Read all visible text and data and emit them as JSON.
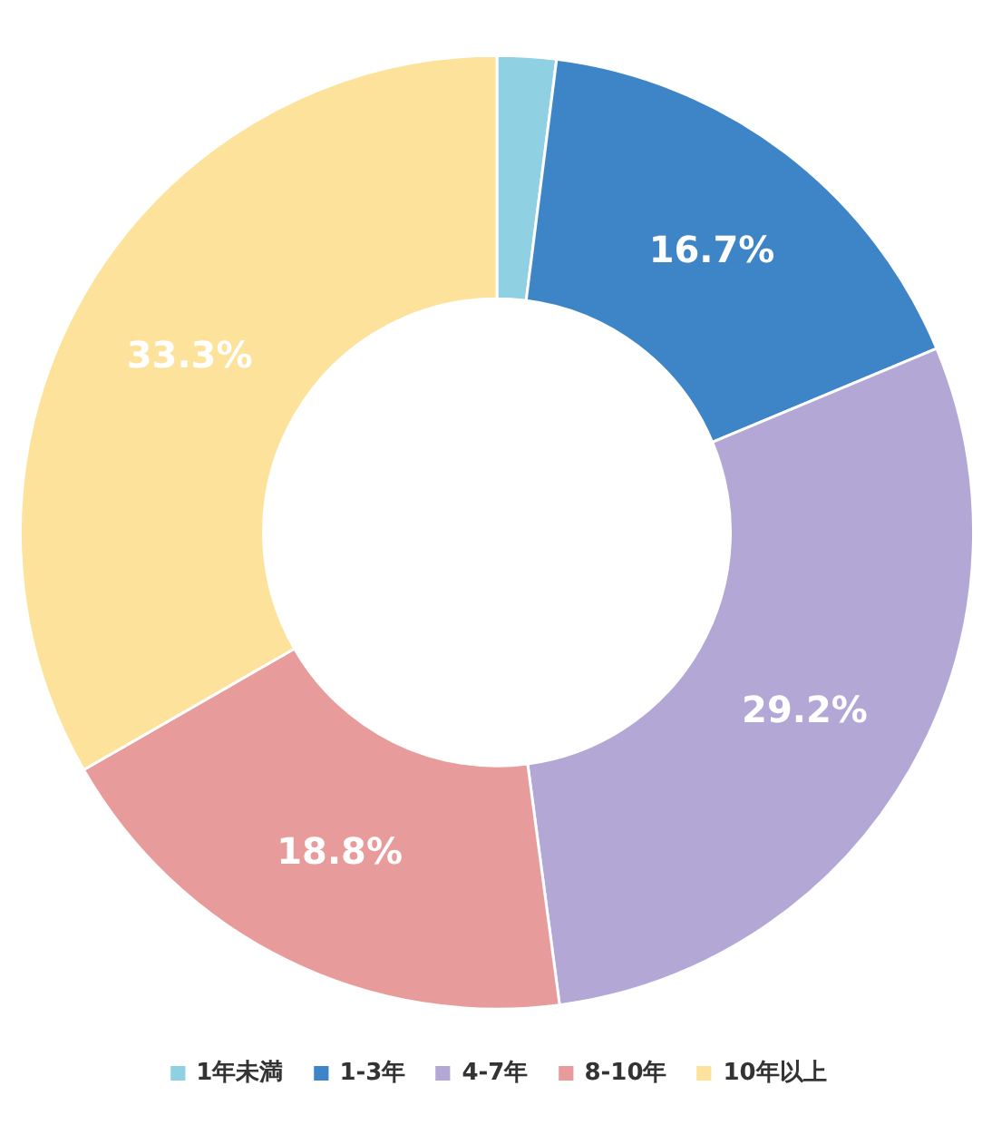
{
  "chart_data": {
    "type": "donut",
    "categories": [
      "1年未満",
      "1-3年",
      "4-7年",
      "8-10年",
      "10年以上"
    ],
    "values": [
      2.0,
      16.7,
      29.2,
      18.8,
      33.3
    ],
    "colors": [
      "#8fd0e2",
      "#3d85c6",
      "#b3a7d6",
      "#e89b9b",
      "#fde29b"
    ],
    "value_labels": [
      null,
      "16.7%",
      "29.2%",
      "18.8%",
      "33.3%"
    ],
    "legend": "bottom"
  }
}
